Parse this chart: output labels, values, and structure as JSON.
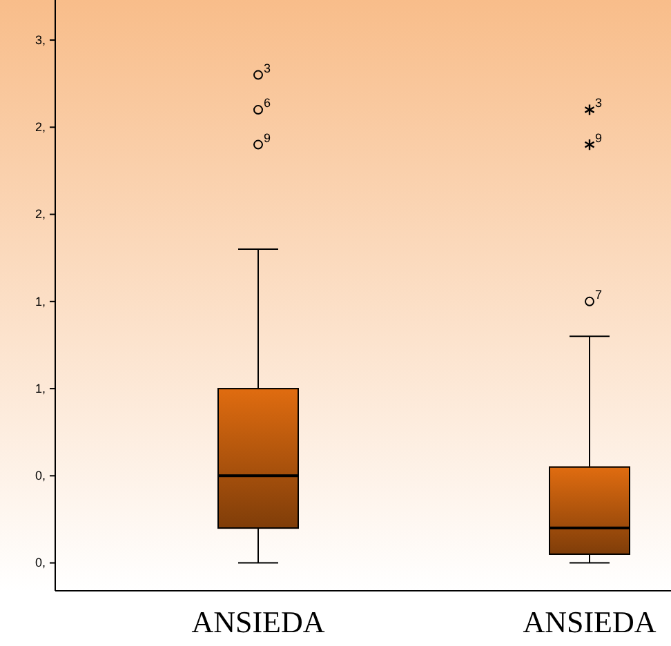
{
  "chart_data": {
    "type": "box",
    "categories": [
      "ANSIEDA",
      "ANSIEDA"
    ],
    "boxes": [
      {
        "low": 0,
        "q1": 0.2,
        "median": 0.5,
        "q3": 1.0,
        "high": 1.8,
        "outliers": [
          2.8,
          2.6,
          2.4
        ]
      },
      {
        "low": 0,
        "q1": 0.05,
        "median": 0.2,
        "q3": 0.55,
        "high": 1.3,
        "outliers": [
          2.6,
          2.4,
          1.5
        ]
      }
    ],
    "color": "#e06c10",
    "ylim": [
      -0.16,
      3.23
    ],
    "yticks": [
      {
        "value": 0,
        "label": "0,"
      },
      {
        "value": 0.5,
        "label": "0,"
      },
      {
        "value": 1,
        "label": "1,"
      },
      {
        "value": 1.5,
        "label": "1,"
      },
      {
        "value": 2,
        "label": "2,"
      },
      {
        "value": 2.5,
        "label": "2,"
      },
      {
        "value": 3,
        "label": "3,"
      }
    ],
    "annotations": [
      "3",
      "6",
      "9",
      "3",
      "9",
      "7"
    ],
    "grid": false
  }
}
